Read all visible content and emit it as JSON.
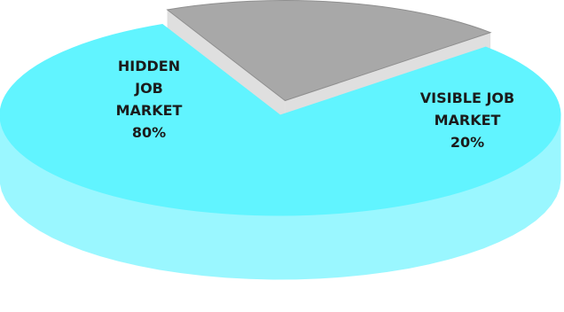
{
  "chart_data": {
    "type": "pie",
    "style": "3d-exploded",
    "slices": [
      {
        "label": "HIDDEN JOB MARKET",
        "value": 80,
        "display_lines": [
          "HIDDEN",
          "JOB",
          "MARKET",
          "80%"
        ],
        "color": "#61f4ff",
        "side_color": "#9af7ff"
      },
      {
        "label": "VISIBLE JOB MARKET",
        "value": 20,
        "display_lines": [
          "VISIBLE JOB",
          "MARKET",
          "20%"
        ],
        "color": "#a8a8a8",
        "side_color": "#dddddd"
      }
    ],
    "title": "",
    "legend": "none"
  }
}
